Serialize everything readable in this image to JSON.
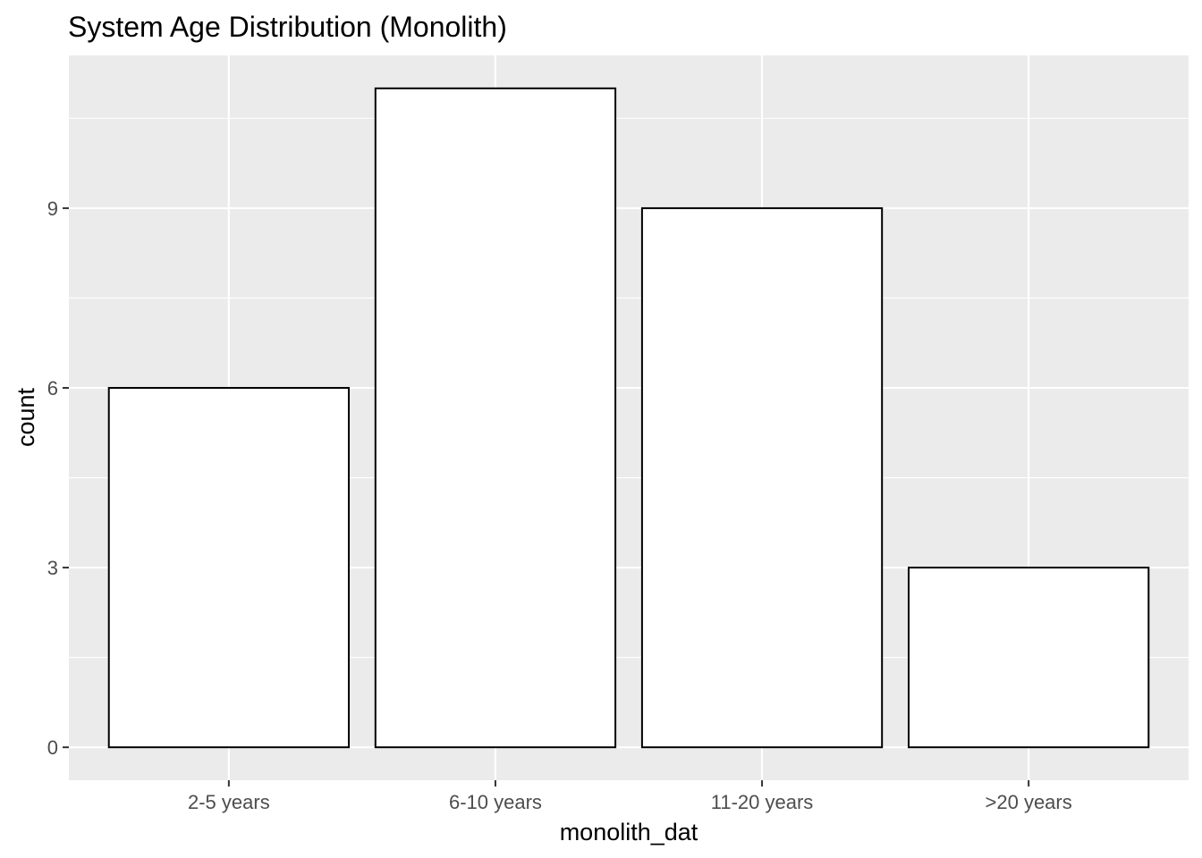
{
  "chart_data": {
    "type": "bar",
    "title": "System Age Distribution (Monolith)",
    "xlabel": "monolith_dat",
    "ylabel": "count",
    "categories": [
      "2-5 years",
      "6-10 years",
      "11-20 years",
      ">20 years"
    ],
    "values": [
      6,
      11,
      9,
      3
    ],
    "ylim": [
      -0.55,
      11.55
    ],
    "yticks": [
      0,
      3,
      6,
      9
    ],
    "grid": true,
    "colors": {
      "panel": "#ebebeb",
      "grid": "#ffffff",
      "bar_fill": "#ffffff",
      "bar_outline": "#000000",
      "tick_text": "#4d4d4d"
    }
  }
}
